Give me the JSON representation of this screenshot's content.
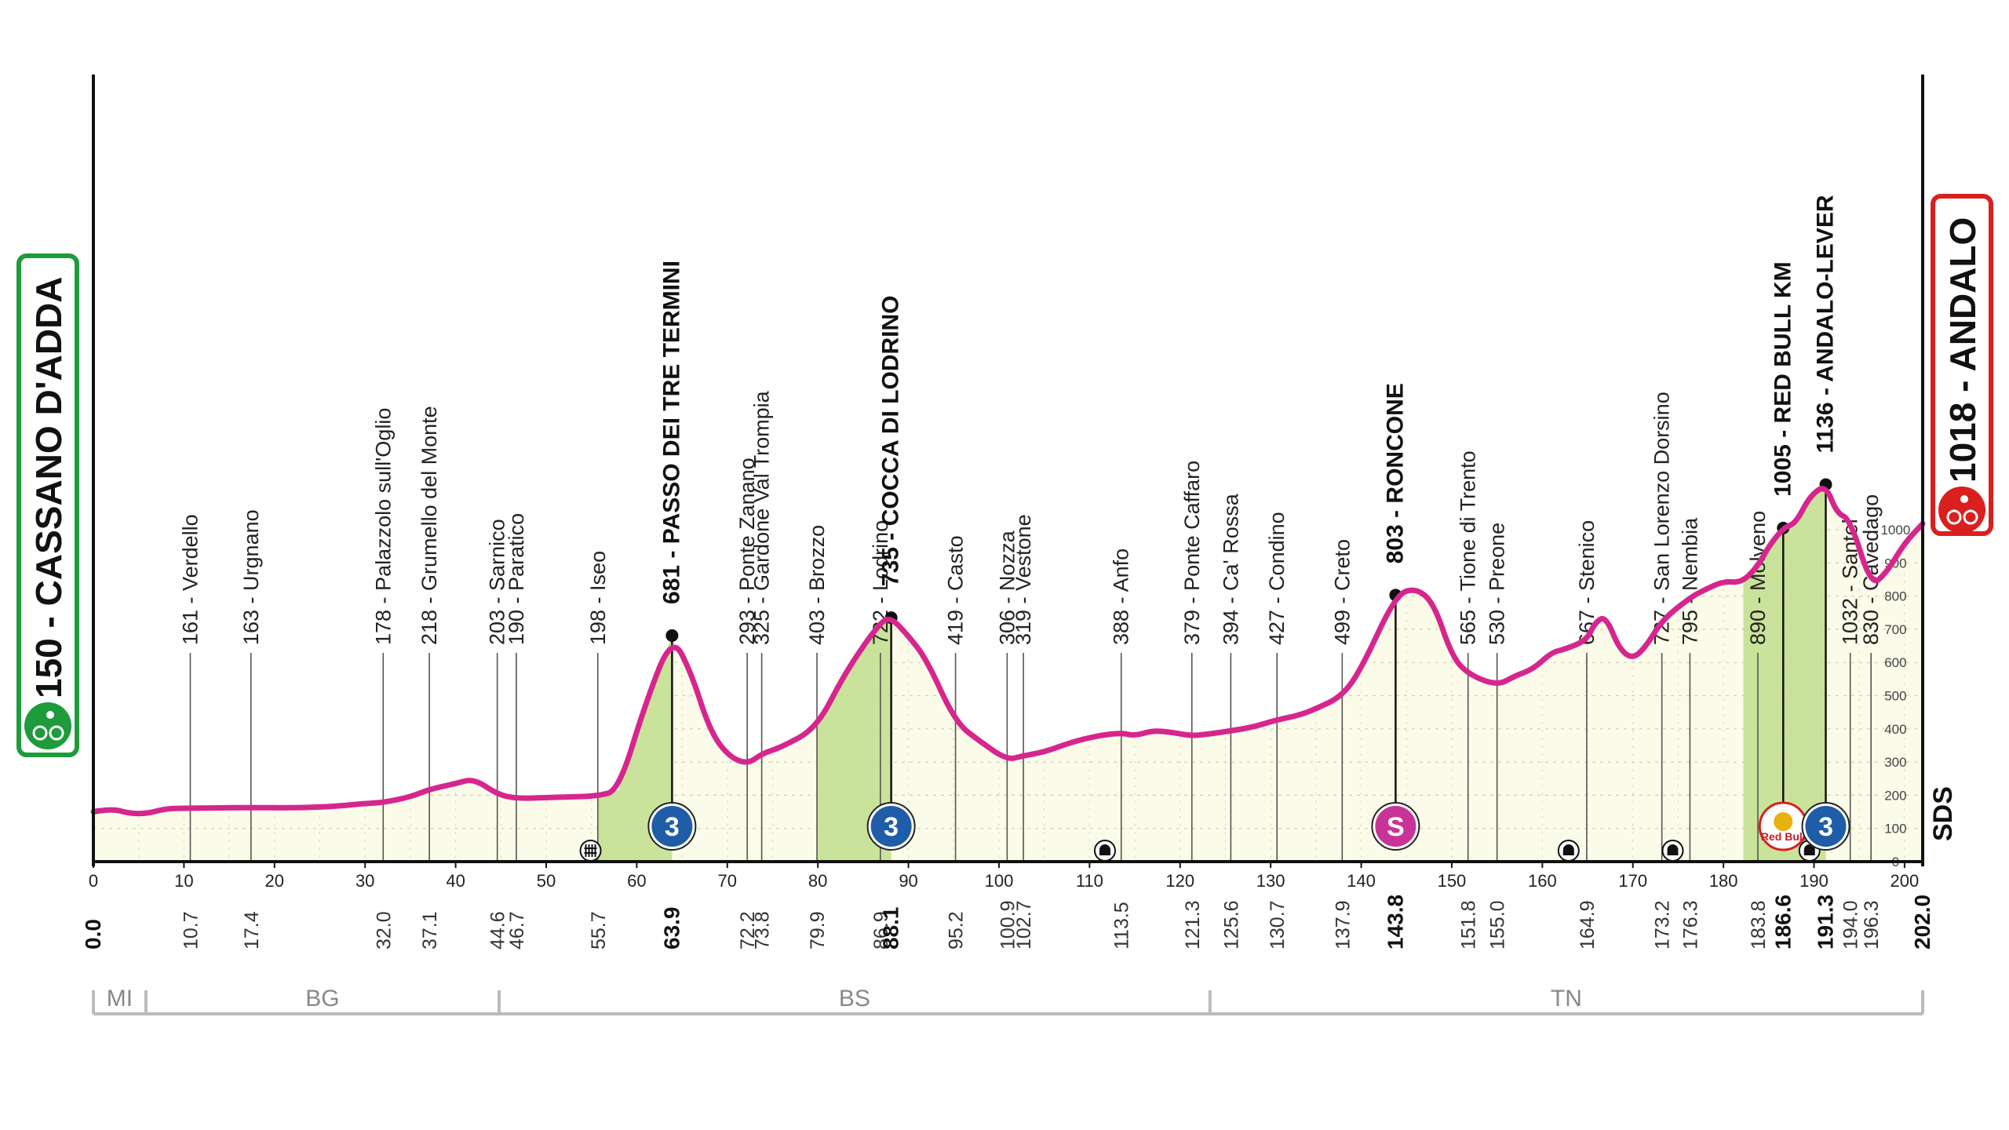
{
  "chart_data": {
    "type": "area",
    "start": {
      "altitude": "150",
      "name": "CASSANO D'ADDA",
      "color": "#1e9b3a"
    },
    "finish": {
      "altitude": "1018",
      "name": "ANDALO",
      "color": "#d9201f"
    },
    "logo_text": "SDS",
    "xlim": [
      0,
      202
    ],
    "ylim": [
      0,
      1200
    ],
    "x_ticks": [
      "0",
      "10",
      "20",
      "30",
      "40",
      "50",
      "60",
      "70",
      "80",
      "90",
      "100",
      "110",
      "120",
      "130",
      "140",
      "150",
      "160",
      "170",
      "180",
      "190",
      "200"
    ],
    "alt_ticks": [
      "1000",
      "900",
      "800",
      "700",
      "600",
      "500",
      "400",
      "300",
      "200",
      "100",
      "0"
    ],
    "profile": {
      "km": [
        0,
        2,
        4,
        6,
        8,
        10.7,
        14,
        17.4,
        22,
        26,
        30,
        32,
        35,
        37.1,
        40,
        42,
        44.6,
        46.7,
        50,
        53,
        55.7,
        58,
        61,
        63.9,
        66,
        68,
        70,
        72.2,
        73.8,
        76,
        79.9,
        83,
        86.9,
        88.1,
        90,
        92,
        95.2,
        98,
        100.9,
        102.7,
        105,
        108,
        111,
        113.5,
        115,
        117,
        119,
        121.3,
        123,
        125.6,
        128,
        130.7,
        133,
        135,
        137.9,
        140,
        143.8,
        146,
        148,
        150,
        151.8,
        155,
        157,
        159,
        161,
        162.5,
        164.9,
        165.8,
        167,
        168.5,
        170,
        171.5,
        173.2,
        176.3,
        178,
        180,
        182,
        183.8,
        185,
        186.6,
        188,
        189.5,
        191.3,
        192.5,
        194,
        196.3,
        198,
        200,
        202
      ],
      "alt": [
        150,
        160,
        145,
        145,
        160,
        161,
        162,
        163,
        162,
        165,
        175,
        178,
        195,
        218,
        235,
        250,
        203,
        190,
        193,
        195,
        198,
        215,
        480,
        681,
        570,
        400,
        320,
        293,
        325,
        345,
        403,
        570,
        722,
        735,
        680,
        610,
        419,
        360,
        306,
        319,
        330,
        360,
        380,
        388,
        379,
        395,
        390,
        379,
        384,
        394,
        405,
        427,
        440,
        460,
        499,
        580,
        803,
        825,
        780,
        620,
        565,
        530,
        560,
        580,
        630,
        640,
        667,
        720,
        740,
        640,
        610,
        650,
        727,
        795,
        820,
        845,
        840,
        890,
        950,
        1005,
        1020,
        1100,
        1136,
        1050,
        1032,
        830,
        870,
        960,
        1018
      ]
    },
    "climbs": [
      {
        "from": 55.7,
        "to": 63.9
      },
      {
        "from": 79.9,
        "to": 88.1
      },
      {
        "from": 182.2,
        "to": 191.3
      }
    ],
    "waypoints": [
      {
        "km": 10.7,
        "alt": "161",
        "name": "Verdello",
        "bold": false
      },
      {
        "km": 17.4,
        "alt": "163",
        "name": "Urgnano",
        "bold": false
      },
      {
        "km": 32.0,
        "alt": "178",
        "name": "Palazzolo sull'Oglio",
        "bold": false
      },
      {
        "km": 37.1,
        "alt": "218",
        "name": "Grumello del Monte",
        "bold": false
      },
      {
        "km": 44.6,
        "alt": "203",
        "name": "Sarnico",
        "bold": false
      },
      {
        "km": 46.7,
        "alt": "190",
        "name": "Paratico",
        "bold": false
      },
      {
        "km": 55.7,
        "alt": "198",
        "name": "Iseo",
        "bold": false
      },
      {
        "km": 63.9,
        "alt": "681",
        "name": "PASSO DEI TRE TERMINI",
        "bold": true
      },
      {
        "km": 72.2,
        "alt": "293",
        "name": "Ponte Zanano",
        "bold": false
      },
      {
        "km": 73.8,
        "alt": "325",
        "name": "Gardone Val Trompia",
        "bold": false
      },
      {
        "km": 79.9,
        "alt": "403",
        "name": "Brozzo",
        "bold": false
      },
      {
        "km": 86.9,
        "alt": "722",
        "name": "Lodrino",
        "bold": false
      },
      {
        "km": 88.1,
        "alt": "735",
        "name": "COCCA DI LODRINO",
        "bold": true
      },
      {
        "km": 95.2,
        "alt": "419",
        "name": "Casto",
        "bold": false
      },
      {
        "km": 100.9,
        "alt": "306",
        "name": "Nozza",
        "bold": false
      },
      {
        "km": 102.7,
        "alt": "319",
        "name": "Vestone",
        "bold": false
      },
      {
        "km": 113.5,
        "alt": "388",
        "name": "Anfo",
        "bold": false
      },
      {
        "km": 121.3,
        "alt": "379",
        "name": "Ponte Caffaro",
        "bold": false
      },
      {
        "km": 125.6,
        "alt": "394",
        "name": "Ca' Rossa",
        "bold": false
      },
      {
        "km": 130.7,
        "alt": "427",
        "name": "Condino",
        "bold": false
      },
      {
        "km": 137.9,
        "alt": "499",
        "name": "Creto",
        "bold": false
      },
      {
        "km": 143.8,
        "alt": "803",
        "name": "RONCONE",
        "bold": true
      },
      {
        "km": 151.8,
        "alt": "565",
        "name": "Tione di Trento",
        "bold": false
      },
      {
        "km": 155.0,
        "alt": "530",
        "name": "Preone",
        "bold": false
      },
      {
        "km": 164.9,
        "alt": "667",
        "name": "Stenico",
        "bold": false
      },
      {
        "km": 173.2,
        "alt": "727",
        "name": "San Lorenzo Dorsino",
        "bold": false
      },
      {
        "km": 176.3,
        "alt": "795",
        "name": "Nembia",
        "bold": false
      },
      {
        "km": 183.8,
        "alt": "890",
        "name": "Molveno",
        "bold": false
      },
      {
        "km": 186.6,
        "alt": "1005",
        "name": "RED BULL KM",
        "bold": true
      },
      {
        "km": 191.3,
        "alt": "1136",
        "name": "ANDALO-LEVER",
        "bold": true
      },
      {
        "km": 194.0,
        "alt": "1032",
        "name": "Santel",
        "bold": false
      },
      {
        "km": 196.3,
        "alt": "830",
        "name": "Cavedago",
        "bold": false
      }
    ],
    "km_labels": [
      {
        "km": 0.0,
        "text": "0.0",
        "bold": true
      },
      {
        "km": 10.7,
        "text": "10.7",
        "bold": false
      },
      {
        "km": 17.4,
        "text": "17.4",
        "bold": false
      },
      {
        "km": 32.0,
        "text": "32.0",
        "bold": false
      },
      {
        "km": 37.1,
        "text": "37.1",
        "bold": false
      },
      {
        "km": 44.6,
        "text": "44.6",
        "bold": false
      },
      {
        "km": 46.7,
        "text": "46.7",
        "bold": false
      },
      {
        "km": 55.7,
        "text": "55.7",
        "bold": false
      },
      {
        "km": 63.9,
        "text": "63.9",
        "bold": true
      },
      {
        "km": 72.2,
        "text": "72.2",
        "bold": false
      },
      {
        "km": 73.8,
        "text": "73.8",
        "bold": false
      },
      {
        "km": 79.9,
        "text": "79.9",
        "bold": false
      },
      {
        "km": 86.9,
        "text": "86.9",
        "bold": false
      },
      {
        "km": 88.1,
        "text": "88.1",
        "bold": true
      },
      {
        "km": 95.2,
        "text": "95.2",
        "bold": false
      },
      {
        "km": 100.9,
        "text": "100.9",
        "bold": false
      },
      {
        "km": 102.7,
        "text": "102.7",
        "bold": false
      },
      {
        "km": 113.5,
        "text": "113.5",
        "bold": false
      },
      {
        "km": 121.3,
        "text": "121.3",
        "bold": false
      },
      {
        "km": 125.6,
        "text": "125.6",
        "bold": false
      },
      {
        "km": 130.7,
        "text": "130.7",
        "bold": false
      },
      {
        "km": 137.9,
        "text": "137.9",
        "bold": false
      },
      {
        "km": 143.8,
        "text": "143.8",
        "bold": true
      },
      {
        "km": 151.8,
        "text": "151.8",
        "bold": false
      },
      {
        "km": 155.0,
        "text": "155.0",
        "bold": false
      },
      {
        "km": 164.9,
        "text": "164.9",
        "bold": false
      },
      {
        "km": 173.2,
        "text": "173.2",
        "bold": false
      },
      {
        "km": 176.3,
        "text": "176.3",
        "bold": false
      },
      {
        "km": 183.8,
        "text": "183.8",
        "bold": false
      },
      {
        "km": 186.6,
        "text": "186.6",
        "bold": true
      },
      {
        "km": 191.3,
        "text": "191.3",
        "bold": true
      },
      {
        "km": 194.0,
        "text": "194.0",
        "bold": false
      },
      {
        "km": 196.3,
        "text": "196.3",
        "bold": false
      },
      {
        "km": 202.0,
        "text": "202.0",
        "bold": true
      }
    ],
    "badges": [
      {
        "km": 63.9,
        "type": "kom",
        "text": "3"
      },
      {
        "km": 88.1,
        "type": "kom",
        "text": "3"
      },
      {
        "km": 143.8,
        "type": "sprint",
        "text": "S"
      },
      {
        "km": 186.6,
        "type": "redbull",
        "text": "Red Bull"
      },
      {
        "km": 191.3,
        "type": "kom",
        "text": "3"
      }
    ],
    "markers": [
      {
        "km": 54.9,
        "type": "level-crossing"
      },
      {
        "km": 111.7,
        "type": "tunnel"
      },
      {
        "km": 162.9,
        "type": "tunnel"
      },
      {
        "km": 174.4,
        "type": "tunnel"
      },
      {
        "km": 189.5,
        "type": "tunnel"
      }
    ],
    "provinces": [
      {
        "name": "MI",
        "from": 0,
        "to": 5.8
      },
      {
        "name": "BG",
        "from": 5.8,
        "to": 44.8
      },
      {
        "name": "BS",
        "from": 44.8,
        "to": 123.3
      },
      {
        "name": "TN",
        "from": 123.3,
        "to": 202
      }
    ],
    "colors": {
      "profile_line": "#d6268e",
      "area_fill": "#fbfbe9",
      "climb_fill": "#c9e39b",
      "kom_badge": "#1f5da8",
      "sprint_badge": "#c83397",
      "province_line": "#bbbbbb"
    }
  }
}
